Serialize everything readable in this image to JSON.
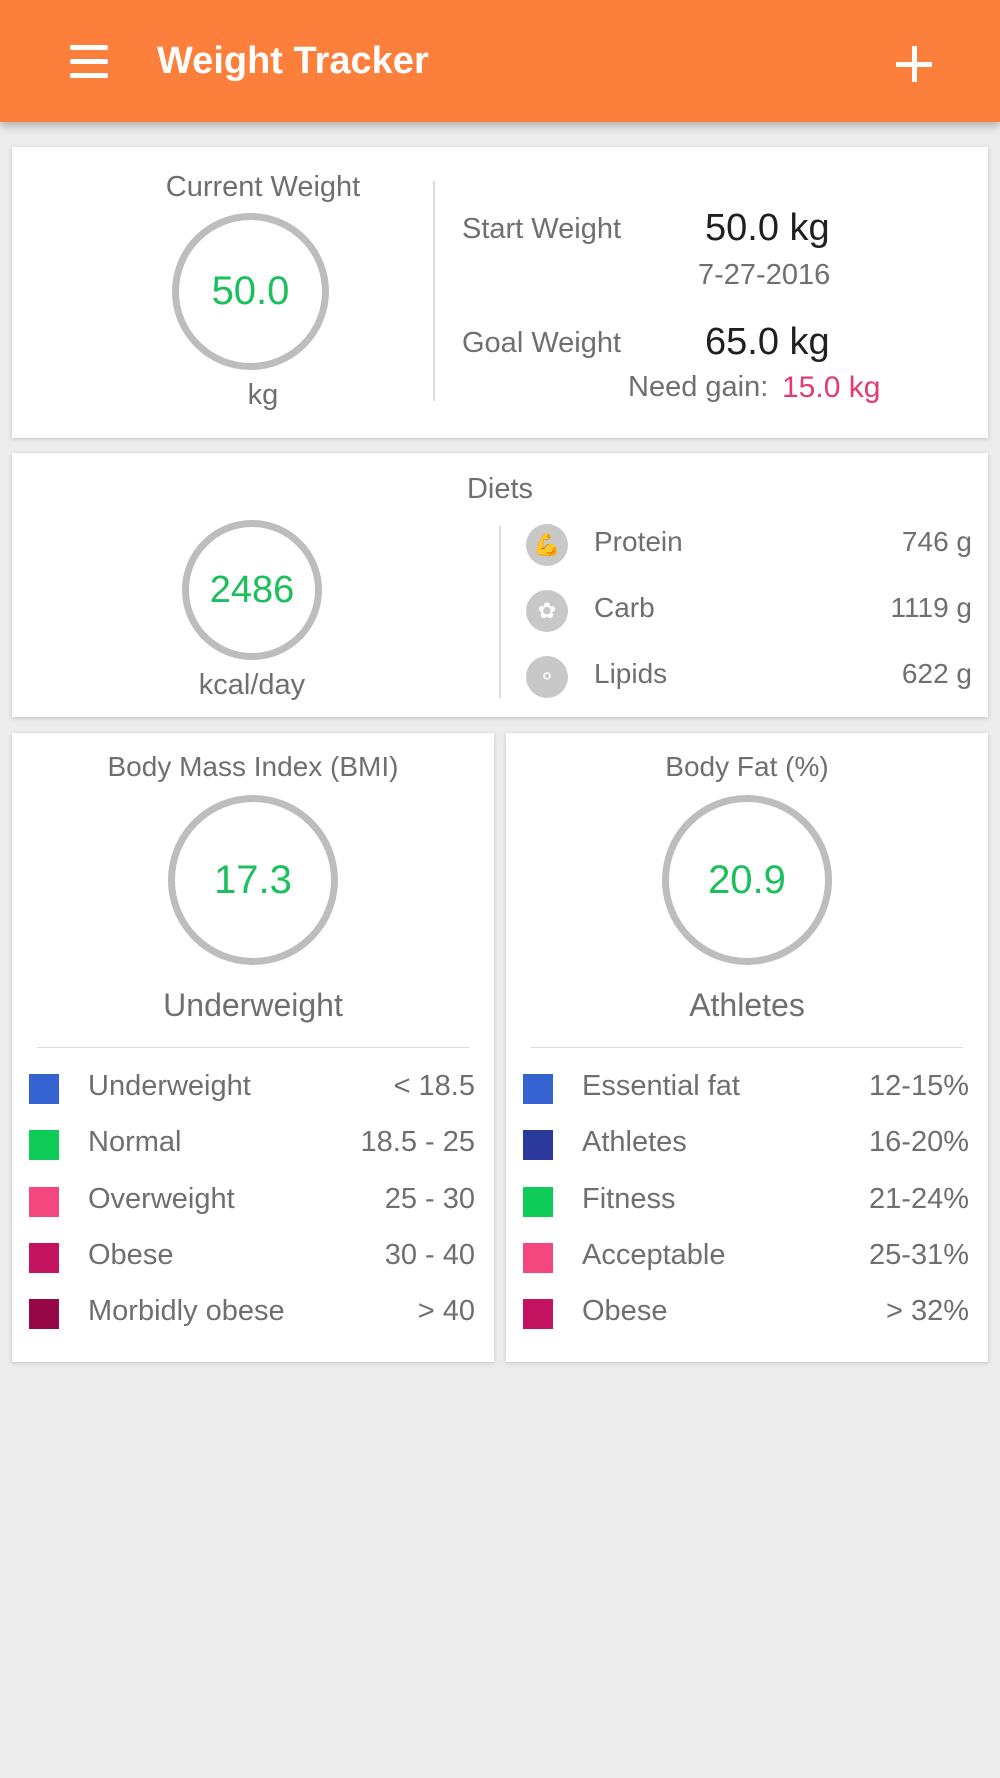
{
  "appbar": {
    "title": "Weight Tracker",
    "menu_icon": "hamburger-menu-icon",
    "add_icon": "plus-icon"
  },
  "weight": {
    "current_label": "Current Weight",
    "current_value": "50.0",
    "unit": "kg",
    "start_label": "Start Weight",
    "start_value": "50.0 kg",
    "start_date": "7-27-2016",
    "goal_label": "Goal Weight",
    "goal_value": "65.0 kg",
    "need_label": "Need gain:",
    "need_value": "15.0 kg"
  },
  "diets": {
    "title": "Diets",
    "kcal_value": "2486",
    "kcal_unit": "kcal/day",
    "macros": [
      {
        "name": "Protein",
        "value": "746 g",
        "icon": "muscle-icon"
      },
      {
        "name": "Carb",
        "value": "1119 g",
        "icon": "wheat-icon"
      },
      {
        "name": "Lipids",
        "value": "622 g",
        "icon": "molecule-icon"
      }
    ]
  },
  "bmi": {
    "title": "Body Mass Index (BMI)",
    "value": "17.3",
    "category": "Underweight",
    "legend": [
      {
        "name": "Underweight",
        "range": "< 18.5",
        "color": "#3563d1"
      },
      {
        "name": "Normal",
        "range": "18.5 - 25",
        "color": "#0fcb57"
      },
      {
        "name": "Overweight",
        "range": "25 - 30",
        "color": "#f4467f"
      },
      {
        "name": "Obese",
        "range": "30 - 40",
        "color": "#c4135f"
      },
      {
        "name": "Morbidly obese",
        "range": "> 40",
        "color": "#960845"
      }
    ]
  },
  "body_fat": {
    "title": "Body Fat (%)",
    "value": "20.9",
    "category": "Athletes",
    "legend": [
      {
        "name": "Essential fat",
        "range": "12-15%",
        "color": "#3563d1"
      },
      {
        "name": "Athletes",
        "range": "16-20%",
        "color": "#2b3a9a"
      },
      {
        "name": "Fitness",
        "range": "21-24%",
        "color": "#0fcb57"
      },
      {
        "name": "Acceptable",
        "range": "25-31%",
        "color": "#f4467f"
      },
      {
        "name": "Obese",
        "range": "> 32%",
        "color": "#c4135f"
      }
    ]
  }
}
